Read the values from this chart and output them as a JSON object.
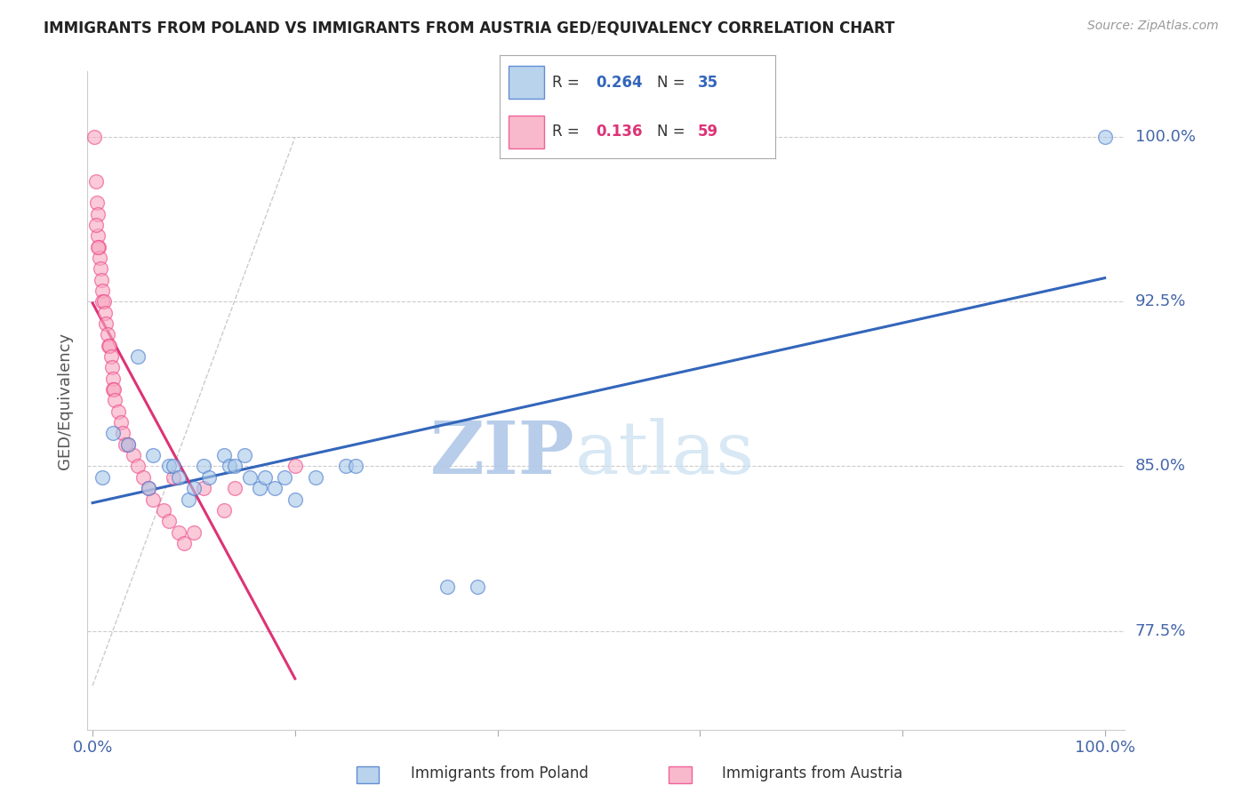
{
  "title": "IMMIGRANTS FROM POLAND VS IMMIGRANTS FROM AUSTRIA GED/EQUIVALENCY CORRELATION CHART",
  "source": "Source: ZipAtlas.com",
  "ylabel": "GED/Equivalency",
  "ytick_labels": [
    "77.5%",
    "85.0%",
    "92.5%",
    "100.0%"
  ],
  "ytick_values": [
    77.5,
    85.0,
    92.5,
    100.0
  ],
  "xlim": [
    -0.5,
    102
  ],
  "ylim": [
    73.0,
    103.0
  ],
  "legend_poland_R": "0.264",
  "legend_poland_N": "35",
  "legend_austria_R": "0.136",
  "legend_austria_N": "59",
  "poland_color": "#A8C8E8",
  "austria_color": "#F8A8C0",
  "poland_edge_color": "#4477CC",
  "austria_edge_color": "#EE4488",
  "poland_line_color": "#3366BB",
  "austria_line_color": "#DD3377",
  "watermark_zip": "ZIP",
  "watermark_atlas": "atlas",
  "poland_x": [
    1.0,
    2.0,
    3.5,
    4.5,
    5.5,
    6.0,
    7.5,
    8.0,
    8.5,
    9.5,
    10.0,
    11.0,
    11.5,
    13.0,
    13.5,
    14.0,
    15.0,
    15.5,
    16.5,
    17.0,
    18.0,
    19.0,
    20.0,
    22.0,
    25.0,
    26.0,
    35.0,
    38.0,
    100.0
  ],
  "poland_y": [
    84.5,
    86.5,
    86.0,
    90.0,
    84.0,
    85.5,
    85.0,
    85.0,
    84.5,
    83.5,
    84.0,
    85.0,
    84.5,
    85.5,
    85.0,
    85.0,
    85.5,
    84.5,
    84.0,
    84.5,
    84.0,
    84.5,
    83.5,
    84.5,
    85.0,
    85.0,
    79.5,
    79.5,
    100.0
  ],
  "austria_x": [
    0.2,
    0.3,
    0.4,
    0.5,
    0.5,
    0.6,
    0.7,
    0.8,
    0.9,
    1.0,
    1.0,
    1.1,
    1.2,
    1.3,
    1.5,
    1.6,
    1.7,
    1.8,
    1.9,
    2.0,
    2.0,
    2.1,
    2.2,
    2.5,
    2.8,
    3.0,
    3.5,
    4.0,
    4.5,
    5.0,
    5.5,
    6.0,
    7.0,
    7.5,
    8.5,
    9.0,
    10.0,
    11.0,
    13.0,
    14.0,
    20.0,
    0.35,
    0.55,
    3.2,
    8.0
  ],
  "austria_y": [
    100.0,
    98.0,
    97.0,
    96.5,
    95.5,
    95.0,
    94.5,
    94.0,
    93.5,
    93.0,
    92.5,
    92.5,
    92.0,
    91.5,
    91.0,
    90.5,
    90.5,
    90.0,
    89.5,
    89.0,
    88.5,
    88.5,
    88.0,
    87.5,
    87.0,
    86.5,
    86.0,
    85.5,
    85.0,
    84.5,
    84.0,
    83.5,
    83.0,
    82.5,
    82.0,
    81.5,
    82.0,
    84.0,
    83.0,
    84.0,
    85.0,
    96.0,
    95.0,
    86.0,
    84.5
  ],
  "xticks_minor": [
    20,
    40,
    60,
    80
  ]
}
